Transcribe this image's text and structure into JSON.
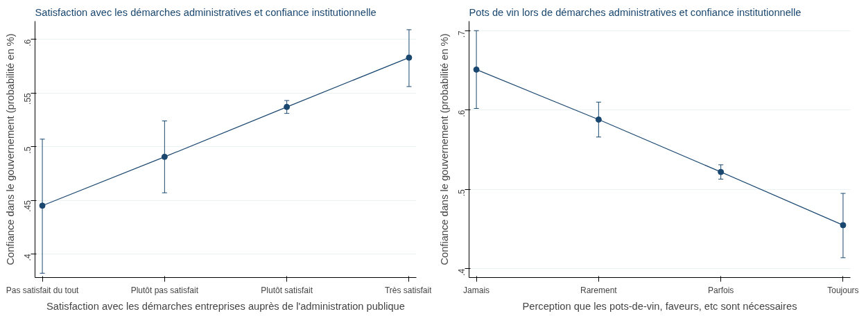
{
  "chart_data": [
    {
      "type": "line",
      "title": "Satisfaction avec les démarches administratives et confiance institutionnelle",
      "xlabel": "Satisfaction avec les démarches entreprises auprès de l'administration publique",
      "ylabel": "Confiance dans le gouvernement (probabilité en %)",
      "categories": [
        "Pas satisfait du tout",
        "Plutôt pas satisfait",
        "Plutôt satisfait",
        "Très satisfait"
      ],
      "series": [
        {
          "color": "#1a476f",
          "values": [
            0.445,
            0.4905,
            0.537,
            0.583
          ],
          "errors": [
            [
              0.382,
              0.507
            ],
            [
              0.457,
              0.524
            ],
            [
              0.531,
              0.543
            ],
            [
              0.556,
              0.609
            ]
          ]
        }
      ],
      "ylim": [
        0.378,
        0.617
      ],
      "yticks": [
        {
          "value": 0.4,
          "label": ".4"
        },
        {
          "value": 0.45,
          "label": ".45"
        },
        {
          "value": 0.5,
          "label": ".5"
        },
        {
          "value": 0.55,
          "label": ".55"
        },
        {
          "value": 0.6,
          "label": ".6"
        }
      ],
      "grid": "y",
      "marker": "circle",
      "line_style": "solid"
    },
    {
      "type": "line",
      "title": "Pots de vin lors de démarches administratives et confiance institutionnelle",
      "xlabel": "Perception que les pots-de-vin, faveurs, etc sont nécessaires",
      "ylabel": "Confiance dans le gouvernement (probabilité en %)",
      "categories": [
        "Jamais",
        "Rarement",
        "Parfois",
        "Toujours"
      ],
      "series": [
        {
          "color": "#1a476f",
          "values": [
            0.651,
            0.588,
            0.522,
            0.455
          ],
          "errors": [
            [
              0.602,
              0.7
            ],
            [
              0.566,
              0.61
            ],
            [
              0.513,
              0.531
            ],
            [
              0.414,
              0.495
            ]
          ]
        }
      ],
      "ylim": [
        0.389,
        0.712
      ],
      "yticks": [
        {
          "value": 0.4,
          "label": ".4"
        },
        {
          "value": 0.5,
          "label": ".5"
        },
        {
          "value": 0.6,
          "label": ".6"
        },
        {
          "value": 0.7,
          "label": ".7"
        }
      ],
      "grid": "y",
      "marker": "circle",
      "line_style": "solid"
    }
  ]
}
